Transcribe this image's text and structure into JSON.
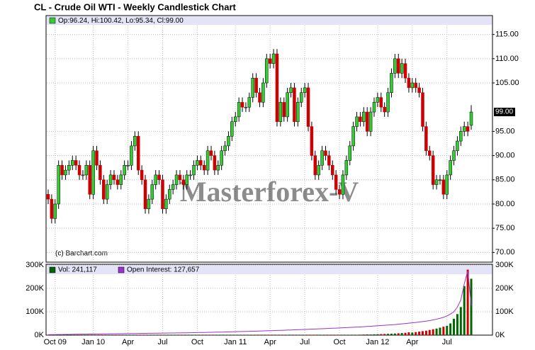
{
  "title": "CL - Crude Oil WTI - Weekly Candlestick Chart",
  "chart_data": [
    {
      "type": "candlestick",
      "legend_text": "Op:96.24, Hi:100.42, Lo:95.34, Cl:99.00",
      "source": "(c) Barchart.com",
      "watermark": "Masterforex-V",
      "up_color": "#33cc33",
      "down_color": "#cc0000",
      "categories": [
        null,
        null,
        "Oct 09",
        null,
        null,
        null,
        null,
        null,
        null,
        null,
        null,
        null,
        null,
        "Jan 10",
        null,
        null,
        null,
        null,
        null,
        null,
        null,
        null,
        null,
        "Apr",
        null,
        null,
        null,
        null,
        null,
        null,
        null,
        null,
        null,
        "Jul",
        null,
        null,
        null,
        null,
        null,
        null,
        null,
        null,
        null,
        "Oct",
        null,
        null,
        null,
        null,
        null,
        null,
        null,
        null,
        null,
        null,
        "Jan 11",
        null,
        null,
        null,
        null,
        null,
        null,
        null,
        null,
        null,
        "Apr",
        null,
        null,
        null,
        null,
        null,
        null,
        null,
        null,
        null,
        "Jul",
        null,
        null,
        null,
        null,
        null,
        null,
        null,
        null,
        null,
        "Oct",
        null,
        null,
        null,
        null,
        null,
        null,
        null,
        null,
        null,
        null,
        "Jan 12",
        null,
        null,
        null,
        null,
        null,
        null,
        null,
        null,
        null,
        "Apr",
        null,
        null,
        null,
        null,
        null,
        null,
        null,
        null,
        null,
        "Jul",
        null,
        null,
        null,
        null,
        null,
        null,
        null
      ],
      "open": [
        82,
        81,
        77,
        80,
        88,
        86,
        87,
        88,
        89,
        88,
        86,
        86,
        88,
        82,
        91,
        88,
        85,
        81,
        84,
        86,
        85,
        84,
        86,
        88,
        88,
        92,
        94,
        87,
        85,
        79,
        81,
        84,
        86,
        85,
        79,
        81,
        83,
        84,
        86,
        85,
        84,
        86,
        86,
        88,
        89,
        88,
        87,
        91,
        90,
        87,
        88,
        91,
        92,
        94,
        97,
        98,
        101,
        100,
        100,
        102,
        106,
        103,
        101,
        105,
        110,
        109,
        111,
        97,
        101,
        98,
        103,
        104,
        97,
        101,
        103,
        104,
        96,
        90,
        86,
        88,
        91,
        90,
        88,
        86,
        83,
        82,
        86,
        89,
        92,
        96,
        98,
        97,
        99,
        95,
        99,
        101,
        102,
        100,
        99,
        103,
        107,
        110,
        107,
        109,
        106,
        104,
        105,
        104,
        103,
        96,
        91,
        90,
        84,
        85,
        85,
        82,
        86,
        89,
        91,
        93,
        95,
        96,
        96.24
      ],
      "high": [
        83,
        82,
        81,
        89,
        89,
        88,
        89,
        90,
        90,
        89,
        87,
        89,
        89,
        92,
        92,
        89,
        86,
        85,
        87,
        87,
        86,
        87,
        89,
        89,
        93,
        95,
        95,
        88,
        86,
        82,
        85,
        87,
        87,
        86,
        82,
        84,
        85,
        87,
        87,
        86,
        87,
        87,
        89,
        90,
        90,
        89,
        92,
        92,
        91,
        89,
        92,
        93,
        95,
        98,
        99,
        102,
        102,
        101,
        103,
        107,
        107,
        104,
        106,
        111,
        111,
        112,
        112,
        102,
        102,
        104,
        105,
        105,
        102,
        104,
        105,
        105,
        97,
        91,
        89,
        92,
        92,
        91,
        89,
        87,
        84,
        87,
        90,
        93,
        97,
        99,
        99,
        100,
        100,
        100,
        102,
        103,
        103,
        101,
        104,
        108,
        111,
        111,
        110,
        110,
        107,
        106,
        106,
        105,
        104,
        97,
        92,
        91,
        86,
        86,
        86,
        87,
        90,
        92,
        94,
        96,
        97,
        97,
        100.42
      ],
      "low": [
        80,
        76,
        76,
        79,
        85,
        85,
        86,
        87,
        87,
        85,
        85,
        85,
        81,
        81,
        87,
        84,
        80,
        80,
        83,
        84,
        83,
        83,
        85,
        87,
        87,
        91,
        86,
        84,
        78,
        78,
        80,
        83,
        84,
        78,
        78,
        80,
        82,
        83,
        84,
        83,
        83,
        85,
        85,
        87,
        87,
        86,
        86,
        89,
        86,
        86,
        87,
        90,
        91,
        93,
        96,
        97,
        99,
        99,
        99,
        101,
        102,
        100,
        100,
        104,
        108,
        108,
        96,
        96,
        97,
        97,
        102,
        96,
        96,
        100,
        102,
        95,
        89,
        85,
        85,
        87,
        89,
        87,
        85,
        82,
        81,
        81,
        85,
        88,
        91,
        95,
        96,
        96,
        94,
        94,
        98,
        100,
        99,
        98,
        98,
        102,
        106,
        106,
        106,
        105,
        103,
        103,
        103,
        102,
        95,
        90,
        89,
        83,
        83,
        84,
        81,
        81,
        85,
        88,
        90,
        92,
        94,
        94,
        95.34
      ],
      "close": [
        81,
        77,
        80,
        88,
        86,
        87,
        88,
        89,
        88,
        86,
        86,
        88,
        82,
        91,
        88,
        85,
        81,
        84,
        86,
        85,
        84,
        86,
        88,
        88,
        92,
        94,
        87,
        85,
        79,
        81,
        84,
        86,
        85,
        79,
        81,
        83,
        84,
        86,
        85,
        84,
        86,
        86,
        88,
        89,
        88,
        87,
        91,
        90,
        87,
        88,
        91,
        92,
        94,
        97,
        98,
        101,
        100,
        100,
        102,
        106,
        103,
        101,
        105,
        110,
        109,
        111,
        97,
        101,
        98,
        103,
        104,
        97,
        101,
        103,
        104,
        96,
        90,
        86,
        88,
        91,
        90,
        88,
        86,
        83,
        82,
        86,
        89,
        92,
        96,
        98,
        97,
        99,
        95,
        99,
        101,
        102,
        100,
        99,
        103,
        107,
        110,
        107,
        109,
        106,
        104,
        105,
        104,
        103,
        96,
        91,
        90,
        84,
        85,
        85,
        82,
        86,
        89,
        91,
        93,
        95,
        96,
        95,
        99
      ],
      "last_price": {
        "value": 99,
        "label": "99.00"
      },
      "ylim": [
        68,
        117
      ],
      "yticks": [
        {
          "value": 70,
          "label": "70.00"
        },
        {
          "value": 75,
          "label": "75.00"
        },
        {
          "value": 80,
          "label": "80.00"
        },
        {
          "value": 85,
          "label": "85.00"
        },
        {
          "value": 90,
          "label": "90.00"
        },
        {
          "value": 95,
          "label": "95.00"
        },
        {
          "value": 105,
          "label": "105.00"
        },
        {
          "value": 110,
          "label": "110.00"
        },
        {
          "value": 115,
          "label": "115.00"
        }
      ],
      "grid": true
    },
    {
      "type": "bar",
      "ylim": [
        0,
        300000
      ],
      "yticks": [
        {
          "value": 0,
          "label": "0K"
        },
        {
          "value": 100000,
          "label": "100K"
        },
        {
          "value": 200000,
          "label": "200K"
        },
        {
          "value": 300000,
          "label": "300K"
        }
      ],
      "grid": true,
      "series": [
        {
          "name": "Vol: 241,117",
          "type": "bar",
          "up_color": "#006600",
          "down_color": "#cc0000",
          "color": "#006600",
          "values": [
            1000,
            1200,
            900,
            1100,
            1300,
            1000,
            1400,
            1200,
            1100,
            1500,
            1000,
            1200,
            900,
            1100,
            1300,
            1000,
            1400,
            1200,
            1100,
            1500,
            1000,
            1200,
            900,
            1100,
            1300,
            1000,
            1400,
            1200,
            1100,
            1500,
            1000,
            1200,
            900,
            1100,
            1300,
            1000,
            1400,
            1200,
            1100,
            1500,
            1000,
            1200,
            900,
            1100,
            1300,
            1000,
            1400,
            1200,
            1100,
            1500,
            1000,
            1200,
            900,
            1100,
            1300,
            1000,
            1400,
            1200,
            1100,
            1500,
            1000,
            1200,
            900,
            1100,
            1300,
            1000,
            1400,
            1200,
            1100,
            1500,
            1000,
            1200,
            900,
            1100,
            1300,
            1000,
            1400,
            1200,
            1100,
            1500,
            1000,
            1200,
            900,
            1100,
            1300,
            1000,
            1400,
            1200,
            1100,
            1500,
            2000,
            2500,
            3000,
            2800,
            3500,
            4000,
            4500,
            5000,
            5500,
            6000,
            7000,
            8000,
            9000,
            10000,
            12000,
            11000,
            13000,
            15000,
            17000,
            19000,
            22000,
            25000,
            28000,
            32000,
            36000,
            40000,
            50000,
            70000,
            90000,
            120000,
            210000,
            280000,
            241117
          ]
        },
        {
          "name": "Open Interest: 127,657",
          "type": "line",
          "color": "#9933cc",
          "values": [
            2000,
            2200,
            2400,
            2600,
            2800,
            3000,
            3200,
            3400,
            3600,
            3800,
            4000,
            4200,
            4400,
            4600,
            4800,
            5000,
            5200,
            5400,
            5600,
            5800,
            6000,
            6200,
            6400,
            6600,
            6800,
            7000,
            7200,
            7400,
            7600,
            7800,
            8000,
            8200,
            8400,
            8600,
            8800,
            9000,
            9200,
            9400,
            9600,
            9800,
            10000,
            10300,
            10600,
            10900,
            11200,
            11500,
            11800,
            12100,
            12400,
            12700,
            13000,
            13400,
            13800,
            14200,
            14600,
            15000,
            15400,
            15800,
            16200,
            16600,
            17000,
            17500,
            18000,
            18500,
            19000,
            19500,
            20000,
            20500,
            21000,
            21500,
            22000,
            22600,
            23200,
            23800,
            24400,
            25000,
            25600,
            26200,
            26800,
            27400,
            28000,
            28700,
            29400,
            30100,
            30800,
            31500,
            32200,
            32900,
            33600,
            34300,
            35000,
            36000,
            37000,
            38000,
            39000,
            40000,
            41000,
            42000,
            43000,
            44000,
            45000,
            46500,
            48000,
            49500,
            51000,
            52500,
            54000,
            56000,
            58000,
            60000,
            62000,
            65000,
            68000,
            72000,
            76000,
            82000,
            90000,
            100000,
            120000,
            150000,
            220000,
            275000,
            127657
          ]
        }
      ]
    }
  ]
}
